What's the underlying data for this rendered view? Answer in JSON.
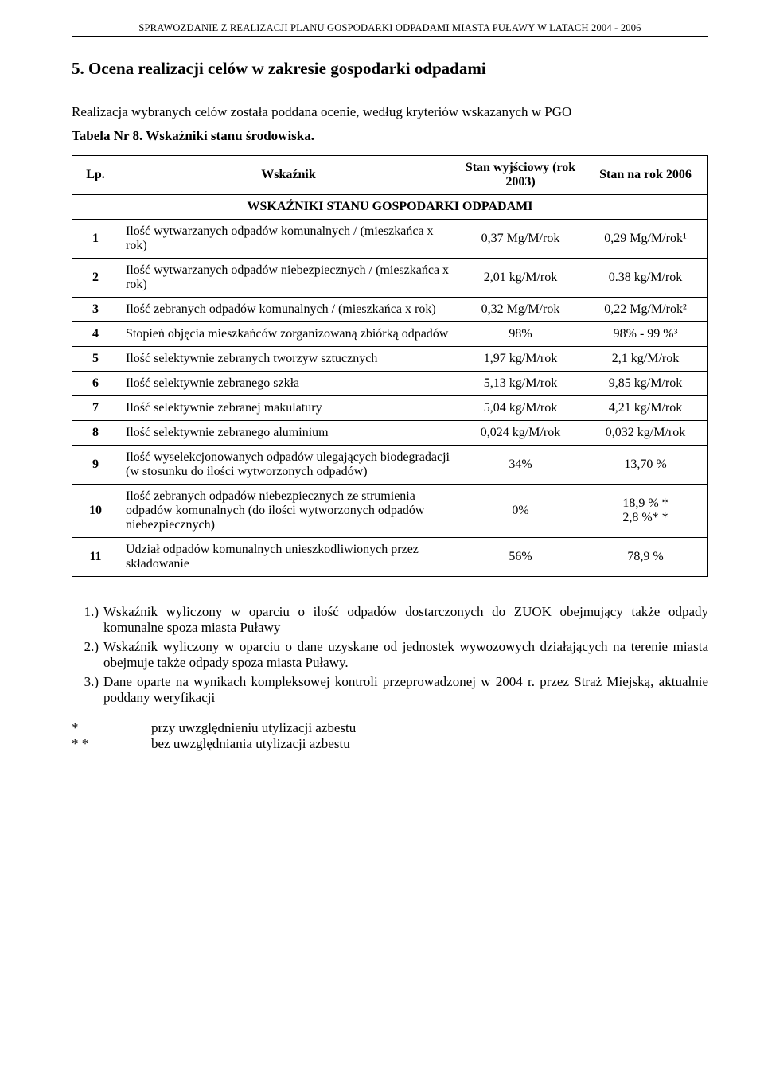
{
  "header": {
    "running_title": "SPRAWOZDANIE Z REALIZACJI PLANU GOSPODARKI ODPADAMI MIASTA PUŁAWY W LATACH 2004 - 2006"
  },
  "section": {
    "title": "5. Ocena realizacji celów w zakresie gospodarki odpadami",
    "intro": "Realizacja wybranych celów została poddana ocenie, według kryteriów wskazanych w PGO",
    "table_caption": "Tabela Nr 8. Wskaźniki stanu środowiska."
  },
  "table": {
    "columns": {
      "lp": "Lp.",
      "ind": "Wskaźnik",
      "baseline": "Stan wyjściowy (rok 2003)",
      "current": "Stan na rok 2006"
    },
    "section_heading": "WSKAŹNIKI STANU GOSPODARKI ODPADAMI",
    "rows": [
      {
        "lp": "1",
        "ind": "Ilość wytwarzanych odpadów komunalnych / (mieszkańca x rok)",
        "v1": "0,37 Mg/M/rok",
        "v2": "0,29 Mg/M/rok¹"
      },
      {
        "lp": "2",
        "ind": "Ilość wytwarzanych odpadów niebezpiecznych / (mieszkańca x rok)",
        "v1": "2,01 kg/M/rok",
        "v2": "0.38 kg/M/rok"
      },
      {
        "lp": "3",
        "ind": "Ilość zebranych odpadów komunalnych / (mieszkańca x rok)",
        "v1": "0,32 Mg/M/rok",
        "v2": "0,22 Mg/M/rok²"
      },
      {
        "lp": "4",
        "ind": "Stopień objęcia mieszkańców zorganizowaną zbiórką odpadów",
        "v1": "98%",
        "v2": "98% - 99 %³"
      },
      {
        "lp": "5",
        "ind": "Ilość selektywnie zebranych tworzyw sztucznych",
        "v1": "1,97 kg/M/rok",
        "v2": "2,1 kg/M/rok"
      },
      {
        "lp": "6",
        "ind": "Ilość selektywnie zebranego szkła",
        "v1": "5,13 kg/M/rok",
        "v2": "9,85 kg/M/rok"
      },
      {
        "lp": "7",
        "ind": "Ilość selektywnie zebranej makulatury",
        "v1": "5,04 kg/M/rok",
        "v2": "4,21 kg/M/rok"
      },
      {
        "lp": "8",
        "ind": "Ilość selektywnie zebranego aluminium",
        "v1": "0,024 kg/M/rok",
        "v2": "0,032 kg/M/rok"
      },
      {
        "lp": "9",
        "ind": "Ilość wyselekcjonowanych odpadów ulegających biodegradacji (w stosunku do ilości wytworzonych odpadów)",
        "v1": "34%",
        "v2": "13,70 %"
      },
      {
        "lp": "10",
        "ind": "Ilość zebranych odpadów niebezpiecznych ze strumienia odpadów komunalnych (do ilości wytworzonych odpadów niebezpiecznych)",
        "v1": "0%",
        "v2": "18,9 % *\n2,8 %* *"
      },
      {
        "lp": "11",
        "ind": "Udział odpadów komunalnych unieszkodliwionych przez składowanie",
        "v1": "56%",
        "v2": "78,9 %"
      }
    ]
  },
  "footnotes": {
    "numbered": [
      {
        "marker": "1.)",
        "text": "Wskaźnik wyliczony w oparciu o ilość odpadów dostarczonych do ZUOK obejmujący także odpady komunalne spoza miasta Puławy"
      },
      {
        "marker": "2.)",
        "text": "Wskaźnik wyliczony w oparciu o dane uzyskane od jednostek wywozowych działających na terenie miasta obejmuje także odpady spoza miasta Puławy."
      },
      {
        "marker": "3.)",
        "text": "Dane oparte na wynikach  kompleksowej kontroli  przeprowadzonej  w 2004 r. przez Straż Miejską, aktualnie poddany  weryfikacji"
      }
    ],
    "starred": [
      {
        "marker": "*",
        "text": "przy uwzględnieniu utylizacji azbestu"
      },
      {
        "marker": "* *",
        "text": "bez uwzględniania utylizacji azbestu"
      }
    ]
  }
}
